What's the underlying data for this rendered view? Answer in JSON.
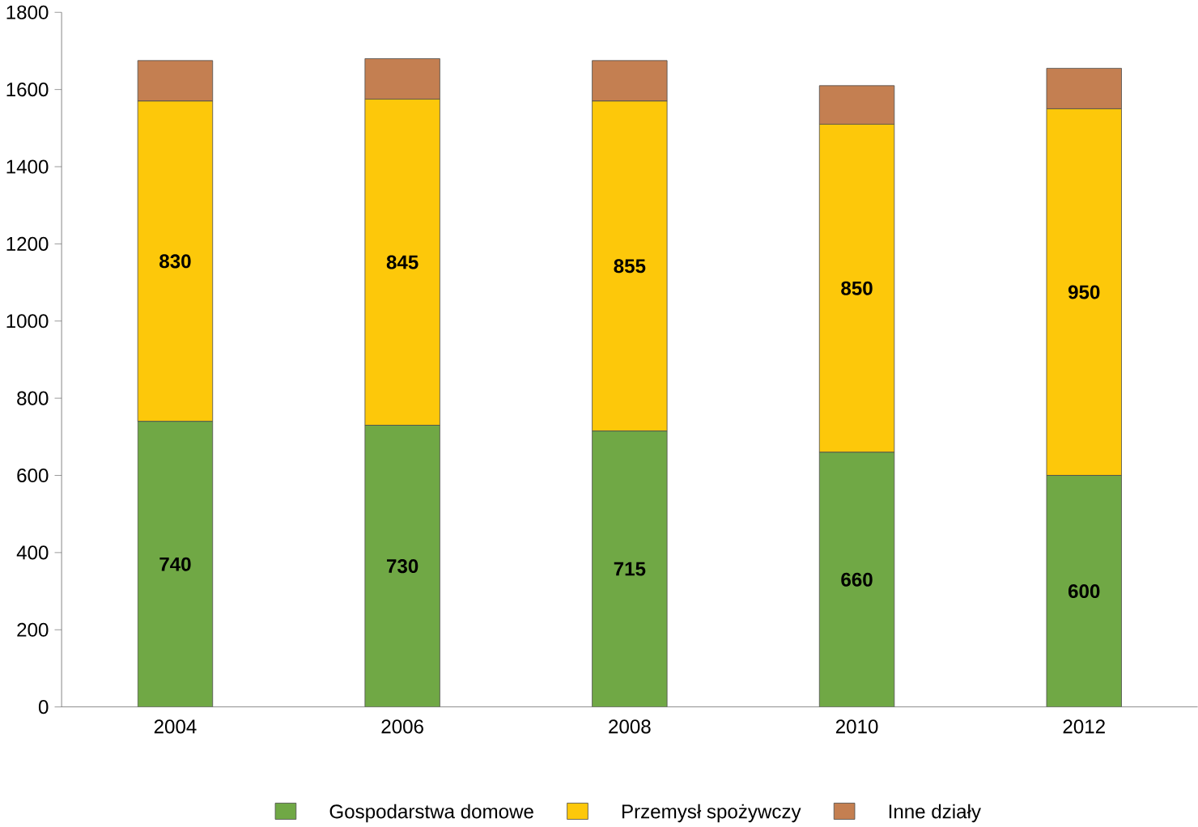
{
  "chart_data": {
    "type": "bar",
    "stacked": true,
    "categories": [
      "2004",
      "2006",
      "2008",
      "2010",
      "2012"
    ],
    "series": [
      {
        "name": "Gospodarstwa domowe",
        "color": "#70a845",
        "values": [
          740,
          730,
          715,
          660,
          600
        ],
        "value_labels": [
          "740",
          "730",
          "715",
          "660",
          "600"
        ]
      },
      {
        "name": "Przemysł spożywczy",
        "color": "#fdc80a",
        "values": [
          830,
          845,
          855,
          850,
          950
        ],
        "value_labels": [
          "830",
          "845",
          "855",
          "850",
          "950"
        ]
      },
      {
        "name": "Inne działy",
        "color": "#c47f51",
        "values": [
          105,
          105,
          105,
          100,
          105
        ]
      }
    ],
    "ylim": [
      0,
      1800
    ],
    "yticks": [
      0,
      200,
      400,
      600,
      800,
      1000,
      1200,
      1400,
      1600,
      1800
    ],
    "grid": false,
    "legend": "bottom"
  }
}
